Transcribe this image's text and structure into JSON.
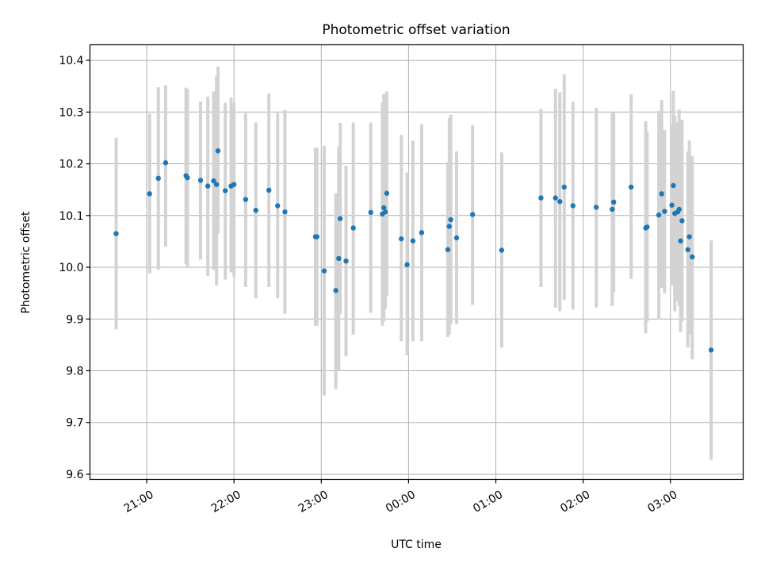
{
  "chart_data": {
    "type": "scatter",
    "title": "Photometric offset variation",
    "xlabel": "UTC time",
    "ylabel": "Photometric offset",
    "xlim": [
      "2000-01-01T20:21",
      "2000-01-02T03:50"
    ],
    "ylim": [
      9.59,
      10.43
    ],
    "grid": true,
    "x_ticks": [
      {
        "t": "2000-01-01T21:00",
        "label": "21:00"
      },
      {
        "t": "2000-01-01T22:00",
        "label": "22:00"
      },
      {
        "t": "2000-01-01T23:00",
        "label": "23:00"
      },
      {
        "t": "2000-01-02T00:00",
        "label": "00:00"
      },
      {
        "t": "2000-01-02T01:00",
        "label": "01:00"
      },
      {
        "t": "2000-01-02T02:00",
        "label": "02:00"
      },
      {
        "t": "2000-01-02T03:00",
        "label": "03:00"
      }
    ],
    "y_ticks": [
      9.6,
      9.7,
      9.8,
      9.9,
      10.0,
      10.1,
      10.2,
      10.3,
      10.4
    ],
    "colors": {
      "points": "#1f77b4",
      "errorbars": "#d3d3d3"
    },
    "series": [
      {
        "points": [
          {
            "x": "2000-01-01T20:39",
            "y": 10.065,
            "lo": 9.88,
            "hi": 10.25
          },
          {
            "x": "2000-01-01T21:02",
            "y": 10.142,
            "lo": 9.988,
            "hi": 10.297
          },
          {
            "x": "2000-01-01T21:08",
            "y": 10.172,
            "lo": 9.995,
            "hi": 10.348
          },
          {
            "x": "2000-01-01T21:13",
            "y": 10.202,
            "lo": 10.04,
            "hi": 10.352
          },
          {
            "x": "2000-01-01T21:27",
            "y": 10.177,
            "lo": 10.007,
            "hi": 10.347
          },
          {
            "x": "2000-01-01T21:28",
            "y": 10.173,
            "lo": 10.0,
            "hi": 10.345
          },
          {
            "x": "2000-01-01T21:37",
            "y": 10.168,
            "lo": 10.015,
            "hi": 10.32
          },
          {
            "x": "2000-01-01T21:42",
            "y": 10.157,
            "lo": 9.983,
            "hi": 10.33
          },
          {
            "x": "2000-01-01T21:46",
            "y": 10.167,
            "lo": 9.995,
            "hi": 10.34
          },
          {
            "x": "2000-01-01T21:48",
            "y": 10.16,
            "lo": 9.965,
            "hi": 10.37
          },
          {
            "x": "2000-01-01T21:49",
            "y": 10.225,
            "lo": 10.065,
            "hi": 10.388
          },
          {
            "x": "2000-01-01T21:54",
            "y": 10.148,
            "lo": 9.976,
            "hi": 10.318
          },
          {
            "x": "2000-01-01T21:58",
            "y": 10.157,
            "lo": 9.99,
            "hi": 10.328
          },
          {
            "x": "2000-01-01T22:00",
            "y": 10.16,
            "lo": 9.982,
            "hi": 10.318
          },
          {
            "x": "2000-01-01T22:08",
            "y": 10.131,
            "lo": 9.962,
            "hi": 10.298
          },
          {
            "x": "2000-01-01T22:15",
            "y": 10.11,
            "lo": 9.94,
            "hi": 10.28
          },
          {
            "x": "2000-01-01T22:24",
            "y": 10.149,
            "lo": 9.962,
            "hi": 10.336
          },
          {
            "x": "2000-01-01T22:30",
            "y": 10.119,
            "lo": 9.94,
            "hi": 10.298
          },
          {
            "x": "2000-01-01T22:35",
            "y": 10.107,
            "lo": 9.91,
            "hi": 10.304
          },
          {
            "x": "2000-01-01T22:56",
            "y": 10.059,
            "lo": 9.887,
            "hi": 10.231
          },
          {
            "x": "2000-01-01T22:57",
            "y": 10.059,
            "lo": 9.887,
            "hi": 10.231
          },
          {
            "x": "2000-01-01T23:02",
            "y": 9.993,
            "lo": 9.752,
            "hi": 10.235
          },
          {
            "x": "2000-01-01T23:10",
            "y": 9.955,
            "lo": 9.765,
            "hi": 10.143
          },
          {
            "x": "2000-01-01T23:12",
            "y": 10.017,
            "lo": 9.8,
            "hi": 10.233
          },
          {
            "x": "2000-01-01T23:13",
            "y": 10.094,
            "lo": 9.91,
            "hi": 10.279
          },
          {
            "x": "2000-01-01T23:17",
            "y": 10.012,
            "lo": 9.828,
            "hi": 10.196
          },
          {
            "x": "2000-01-01T23:22",
            "y": 10.076,
            "lo": 9.87,
            "hi": 10.28
          },
          {
            "x": "2000-01-01T23:34",
            "y": 10.106,
            "lo": 9.912,
            "hi": 10.28
          },
          {
            "x": "2000-01-01T23:42",
            "y": 10.103,
            "lo": 9.887,
            "hi": 10.318
          },
          {
            "x": "2000-01-01T23:43",
            "y": 10.115,
            "lo": 9.895,
            "hi": 10.335
          },
          {
            "x": "2000-01-01T23:44",
            "y": 10.107,
            "lo": 9.92,
            "hi": 10.32
          },
          {
            "x": "2000-01-01T23:45",
            "y": 10.143,
            "lo": 9.945,
            "hi": 10.34
          },
          {
            "x": "2000-01-01T23:55",
            "y": 10.055,
            "lo": 9.857,
            "hi": 10.256
          },
          {
            "x": "2000-01-01T23:59",
            "y": 10.005,
            "lo": 9.83,
            "hi": 10.183
          },
          {
            "x": "2000-01-02T00:03",
            "y": 10.051,
            "lo": 9.857,
            "hi": 10.245
          },
          {
            "x": "2000-01-02T00:09",
            "y": 10.067,
            "lo": 9.857,
            "hi": 10.277
          },
          {
            "x": "2000-01-02T00:27",
            "y": 10.034,
            "lo": 9.865,
            "hi": 10.203
          },
          {
            "x": "2000-01-02T00:28",
            "y": 10.079,
            "lo": 9.87,
            "hi": 10.288
          },
          {
            "x": "2000-01-02T00:29",
            "y": 10.092,
            "lo": 9.89,
            "hi": 10.295
          },
          {
            "x": "2000-01-02T00:33",
            "y": 10.057,
            "lo": 9.89,
            "hi": 10.224
          },
          {
            "x": "2000-01-02T00:44",
            "y": 10.102,
            "lo": 9.927,
            "hi": 10.275
          },
          {
            "x": "2000-01-02T01:04",
            "y": 10.033,
            "lo": 9.845,
            "hi": 10.222
          },
          {
            "x": "2000-01-02T01:31",
            "y": 10.134,
            "lo": 9.962,
            "hi": 10.306
          },
          {
            "x": "2000-01-02T01:41",
            "y": 10.134,
            "lo": 9.922,
            "hi": 10.345
          },
          {
            "x": "2000-01-02T01:44",
            "y": 10.127,
            "lo": 9.915,
            "hi": 10.338
          },
          {
            "x": "2000-01-02T01:47",
            "y": 10.155,
            "lo": 9.937,
            "hi": 10.373
          },
          {
            "x": "2000-01-02T01:53",
            "y": 10.119,
            "lo": 9.918,
            "hi": 10.32
          },
          {
            "x": "2000-01-02T02:09",
            "y": 10.116,
            "lo": 9.922,
            "hi": 10.308
          },
          {
            "x": "2000-01-02T02:20",
            "y": 10.112,
            "lo": 9.925,
            "hi": 10.298
          },
          {
            "x": "2000-01-02T02:21",
            "y": 10.126,
            "lo": 9.952,
            "hi": 10.3
          },
          {
            "x": "2000-01-02T02:33",
            "y": 10.155,
            "lo": 9.977,
            "hi": 10.334
          },
          {
            "x": "2000-01-02T02:43",
            "y": 10.076,
            "lo": 9.872,
            "hi": 10.282
          },
          {
            "x": "2000-01-02T02:44",
            "y": 10.078,
            "lo": 9.895,
            "hi": 10.262
          },
          {
            "x": "2000-01-02T02:52",
            "y": 10.101,
            "lo": 9.9,
            "hi": 10.302
          },
          {
            "x": "2000-01-02T02:54",
            "y": 10.142,
            "lo": 9.96,
            "hi": 10.323
          },
          {
            "x": "2000-01-02T02:56",
            "y": 10.108,
            "lo": 9.95,
            "hi": 10.265
          },
          {
            "x": "2000-01-02T03:01",
            "y": 10.12,
            "lo": 9.965,
            "hi": 10.275
          },
          {
            "x": "2000-01-02T03:02",
            "y": 10.158,
            "lo": 9.975,
            "hi": 10.341
          },
          {
            "x": "2000-01-02T03:03",
            "y": 10.104,
            "lo": 9.915,
            "hi": 10.293
          },
          {
            "x": "2000-01-02T03:05",
            "y": 10.107,
            "lo": 9.935,
            "hi": 10.28
          },
          {
            "x": "2000-01-02T03:06",
            "y": 10.112,
            "lo": 9.925,
            "hi": 10.305
          },
          {
            "x": "2000-01-02T03:07",
            "y": 10.051,
            "lo": 9.875,
            "hi": 10.285
          },
          {
            "x": "2000-01-02T03:08",
            "y": 10.09,
            "lo": 9.895,
            "hi": 10.285
          },
          {
            "x": "2000-01-02T03:12",
            "y": 10.034,
            "lo": 9.845,
            "hi": 10.224
          },
          {
            "x": "2000-01-02T03:13",
            "y": 10.059,
            "lo": 9.87,
            "hi": 10.245
          },
          {
            "x": "2000-01-02T03:15",
            "y": 10.02,
            "lo": 9.822,
            "hi": 10.215
          },
          {
            "x": "2000-01-02T03:28",
            "y": 9.84,
            "lo": 9.628,
            "hi": 10.052
          }
        ]
      }
    ]
  }
}
